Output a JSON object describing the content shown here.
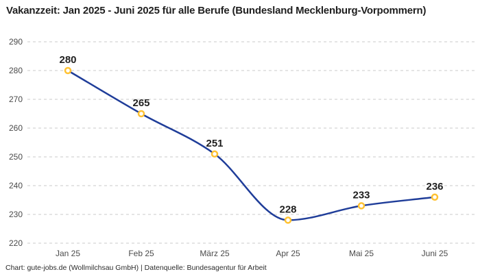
{
  "header": {
    "title": "Vakanzzeit: Jan 2025 - Juni 2025 für alle Berufe (Bundesland Mecklenburg-Vorpommern)"
  },
  "footer": {
    "credit": "Chart: gute-jobs.de (Wollmilchsau GmbH) | Datenquelle: Bundesagentur für Arbeit"
  },
  "chart_data": {
    "type": "line",
    "title": "Vakanzzeit: Jan 2025 - Juni 2025 für alle Berufe (Bundesland Mecklenburg-Vorpommern)",
    "categories": [
      "Jan 25",
      "Feb 25",
      "März 25",
      "Apr 25",
      "Mai 25",
      "Juni 25"
    ],
    "values": [
      280,
      265,
      251,
      228,
      233,
      236
    ],
    "xlabel": "",
    "ylabel": "",
    "ylim": [
      220,
      290
    ],
    "yticks": [
      290,
      280,
      270,
      260,
      250,
      240,
      230,
      220
    ],
    "grid": "horizontal-dashed",
    "legend": "none",
    "smooth": true,
    "data_labels_shown": true,
    "colors": {
      "line": "#1F3D99",
      "marker_stroke": "#FFC233",
      "marker_fill": "#FFFFFF",
      "grid": "#C9C9C9",
      "tick_text": "#4A4A4A",
      "label_text": "#1F1F1F"
    }
  }
}
